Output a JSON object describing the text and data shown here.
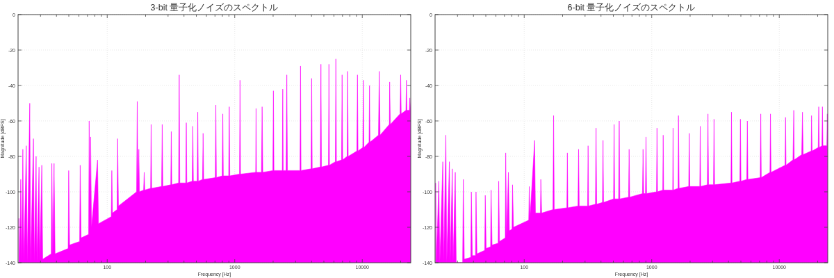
{
  "chart_data": [
    {
      "type": "area",
      "title": "3-bit 量子化ノイズのスペクトル",
      "xlabel": "Frequency [Hz]",
      "ylabel": "Magnitude [dBFS]",
      "color": "#ff00ff",
      "log": "x",
      "grid": true,
      "xlim": [
        20,
        24000
      ],
      "ylim": [
        -140,
        0
      ],
      "xticks": [
        {
          "value": 30,
          "label": null
        },
        {
          "value": 40,
          "label": null
        },
        {
          "value": 50,
          "label": null
        },
        {
          "value": 60,
          "label": null
        },
        {
          "value": 70,
          "label": null
        },
        {
          "value": 80,
          "label": null
        },
        {
          "value": 90,
          "label": null
        },
        100,
        {
          "value": 200,
          "label": null
        },
        {
          "value": 300,
          "label": null
        },
        {
          "value": 400,
          "label": null
        },
        {
          "value": 500,
          "label": null
        },
        {
          "value": 600,
          "label": null
        },
        {
          "value": 700,
          "label": null
        },
        {
          "value": 800,
          "label": null
        },
        {
          "value": 900,
          "label": null
        },
        1000,
        {
          "value": 2000,
          "label": null
        },
        {
          "value": 3000,
          "label": null
        },
        {
          "value": 4000,
          "label": null
        },
        {
          "value": 5000,
          "label": null
        },
        {
          "value": 6000,
          "label": null
        },
        {
          "value": 7000,
          "label": null
        },
        {
          "value": 8000,
          "label": null
        },
        {
          "value": 9000,
          "label": null
        },
        10000,
        {
          "value": 20000,
          "label": null
        }
      ],
      "yticks": [
        -140,
        -120,
        -100,
        -80,
        -60,
        -40,
        -20,
        0
      ],
      "x": [
        20.3,
        20.6,
        21,
        21.4,
        21.8,
        22.2,
        23.2,
        23.6,
        24.7,
        25.1,
        26.4,
        26.8,
        27.7,
        28.1,
        29.2,
        29.6,
        30.7,
        31.2,
        36.4,
        36.8,
        37.4,
        38.3,
        39,
        49.4,
        49.9,
        50.7,
        60.8,
        61.4,
        62.4,
        71.5,
        72.2,
        73.3,
        74.1,
        75.3,
        84,
        85.4,
        107.6,
        108.7,
        110,
        119.5,
        120.7,
        122.5,
        170,
        172,
        174,
        177,
        179,
        193,
        195,
        197,
        219,
        221,
        223,
        267,
        270,
        273,
        315,
        318,
        321,
        363,
        367,
        371,
        413,
        417,
        421,
        464,
        469,
        474,
        508,
        513,
        518,
        559,
        565,
        571,
        704,
        711,
        718,
        798,
        806,
        814,
        897,
        906,
        915,
        1090,
        1100,
        1110,
        1460,
        1470,
        1480,
        1620,
        1640,
        1660,
        1990,
        2010,
        2030,
        2360,
        2380,
        2400,
        2530,
        2560,
        2590,
        3250,
        3280,
        3310,
        3970,
        4010,
        4050,
        4690,
        4740,
        4790,
        5430,
        5480,
        5530,
        6150,
        6210,
        6270,
        6880,
        6950,
        7020,
        7610,
        7680,
        7760,
        9070,
        9170,
        9260,
        10100,
        10200,
        10300,
        11300,
        11400,
        11500,
        13400,
        13600,
        13800,
        16300,
        16400,
        16600,
        19800,
        20000,
        20200,
        22000,
        22200,
        22400,
        23400,
        23600,
        23900,
        24000
      ],
      "values": [
        -115,
        -140,
        -93,
        -140,
        -76,
        -140,
        -74,
        -140,
        -50,
        -140,
        -70,
        -140,
        -80,
        -140,
        -86,
        -140,
        -85,
        -138,
        -135,
        -84,
        -135,
        -84,
        -135,
        -132,
        -88,
        -130,
        -128,
        -85,
        -126,
        -124,
        -60,
        -110,
        -69,
        -120,
        -82,
        -118,
        -114,
        -88,
        -112,
        -110,
        -70,
        -108,
        -100,
        -49,
        -100,
        -76,
        -100,
        -99,
        -89,
        -99,
        -98,
        -62,
        -98,
        -97,
        -62,
        -97,
        -96,
        -66,
        -96,
        -95,
        -34,
        -95,
        -95,
        -61,
        -95,
        -94,
        -63,
        -94,
        -94,
        -55,
        -94,
        -93,
        -67,
        -93,
        -92,
        -51,
        -92,
        -91,
        -56,
        -91,
        -91,
        -52,
        -91,
        -90,
        -37,
        -90,
        -89,
        -53,
        -89,
        -89,
        -52,
        -89,
        -88,
        -43,
        -88,
        -88,
        -42,
        -88,
        -88,
        -34,
        -88,
        -88,
        -29,
        -88,
        -87,
        -36,
        -87,
        -86,
        -28,
        -86,
        -85,
        -28,
        -85,
        -83,
        -25,
        -83,
        -82,
        -34,
        -82,
        -80,
        -32,
        -80,
        -77,
        -34,
        -77,
        -75,
        -37,
        -75,
        -72,
        -40,
        -72,
        -68,
        -32,
        -68,
        -62,
        -38,
        -62,
        -56,
        -34,
        -56,
        -54,
        -37,
        -54,
        -54,
        -47,
        -54,
        -140
      ]
    },
    {
      "type": "area",
      "title": "6-bit 量子化ノイズのスペクトル",
      "xlabel": "Frequency [Hz]",
      "ylabel": "Magnitude [dBFS]",
      "color": "#ff00ff",
      "log": "x",
      "grid": true,
      "xlim": [
        20,
        24000
      ],
      "ylim": [
        -140,
        0
      ],
      "xticks": [
        {
          "value": 30,
          "label": null
        },
        {
          "value": 40,
          "label": null
        },
        {
          "value": 50,
          "label": null
        },
        {
          "value": 60,
          "label": null
        },
        {
          "value": 70,
          "label": null
        },
        {
          "value": 80,
          "label": null
        },
        {
          "value": 90,
          "label": null
        },
        100,
        {
          "value": 200,
          "label": null
        },
        {
          "value": 300,
          "label": null
        },
        {
          "value": 400,
          "label": null
        },
        {
          "value": 500,
          "label": null
        },
        {
          "value": 600,
          "label": null
        },
        {
          "value": 700,
          "label": null
        },
        {
          "value": 800,
          "label": null
        },
        {
          "value": 900,
          "label": null
        },
        1000,
        {
          "value": 2000,
          "label": null
        },
        {
          "value": 3000,
          "label": null
        },
        {
          "value": 4000,
          "label": null
        },
        {
          "value": 5000,
          "label": null
        },
        {
          "value": 6000,
          "label": null
        },
        {
          "value": 7000,
          "label": null
        },
        {
          "value": 8000,
          "label": null
        },
        {
          "value": 9000,
          "label": null
        },
        10000,
        {
          "value": 20000,
          "label": null
        }
      ],
      "yticks": [
        -140,
        -120,
        -100,
        -80,
        -60,
        -40,
        -20,
        0
      ],
      "x": [
        20.2,
        20.5,
        21.4,
        21.8,
        23,
        23.4,
        24.3,
        24.7,
        25.9,
        26.3,
        27.3,
        27.7,
        28.8,
        29.3,
        32.9,
        33.3,
        33.9,
        38.1,
        38.5,
        39.2,
        41.5,
        41.9,
        42.6,
        49,
        49.5,
        50.3,
        54.5,
        55,
        56,
        62.5,
        63.1,
        64,
        71,
        71.6,
        72.8,
        75.2,
        76.5,
        80.3,
        81,
        82.4,
        108.5,
        109.6,
        111,
        120.7,
        122.5,
        134,
        135,
        137,
        168,
        170,
        172,
        216,
        218,
        220,
        264,
        267,
        270,
        314,
        317,
        320,
        362,
        366,
        370,
        411,
        415,
        419,
        502,
        507,
        512,
        550,
        556,
        562,
        658,
        665,
        672,
        846,
        855,
        864,
        893,
        902,
        911,
        1090,
        1100,
        1110,
        1220,
        1230,
        1240,
        1460,
        1470,
        1480,
        1610,
        1620,
        1640,
        1950,
        1970,
        1990,
        2380,
        2400,
        2420,
        2730,
        2760,
        2790,
        3050,
        3080,
        3110,
        4180,
        4220,
        4260,
        4910,
        4960,
        5010,
        5560,
        5620,
        5680,
        7090,
        7160,
        7230,
        8450,
        8530,
        8620,
        11100,
        11200,
        11300,
        12800,
        13000,
        13100,
        15000,
        15200,
        15400,
        17800,
        17900,
        18100,
        20200,
        20400,
        20600,
        21600,
        21800,
        22000,
        23600,
        23800,
        23900,
        24000
      ],
      "values": [
        -95,
        -140,
        -94,
        -140,
        -83,
        -140,
        -68,
        -140,
        -83,
        -140,
        -87,
        -140,
        -89,
        -140,
        -140,
        -93,
        -138,
        -137,
        -100,
        -136,
        -136,
        -100,
        -135,
        -133,
        -102,
        -132,
        -131,
        -99,
        -130,
        -129,
        -94,
        -128,
        -126,
        -78,
        -125,
        -89,
        -122,
        -121,
        -96,
        -120,
        -116,
        -97,
        -115,
        -71,
        -112,
        -112,
        -93,
        -112,
        -110,
        -57,
        -110,
        -109,
        -78,
        -109,
        -108,
        -76,
        -108,
        -108,
        -74,
        -108,
        -107,
        -64,
        -107,
        -106,
        -71,
        -106,
        -104,
        -62,
        -104,
        -104,
        -60,
        -104,
        -103,
        -76,
        -103,
        -101,
        -76,
        -101,
        -101,
        -69,
        -101,
        -100,
        -64,
        -100,
        -99,
        -68,
        -99,
        -99,
        -64,
        -99,
        -98,
        -57,
        -98,
        -97,
        -67,
        -97,
        -97,
        -63,
        -97,
        -96,
        -56,
        -96,
        -96,
        -59,
        -96,
        -95,
        -55,
        -95,
        -94,
        -59,
        -94,
        -93,
        -60,
        -93,
        -92,
        -56,
        -92,
        -89,
        -56,
        -89,
        -85,
        -58,
        -85,
        -82,
        -54,
        -82,
        -79,
        -55,
        -79,
        -77,
        -57,
        -77,
        -75,
        -52,
        -75,
        -74,
        -52,
        -74,
        -74,
        -56,
        -74,
        -140
      ]
    }
  ]
}
